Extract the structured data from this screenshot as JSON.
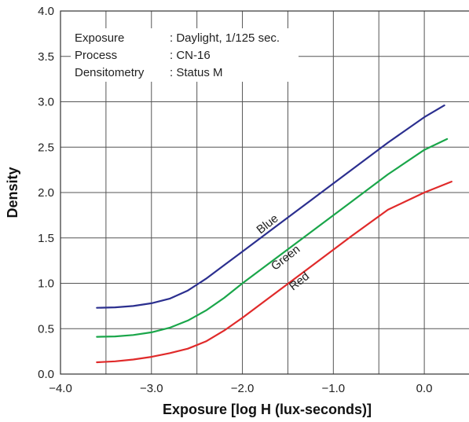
{
  "chart_data": {
    "type": "line",
    "title": "",
    "xlabel": "Exposure [log H (lux-seconds)]",
    "ylabel": "Density",
    "xlim": [
      -4.0,
      0.5
    ],
    "ylim": [
      0.0,
      4.0
    ],
    "xticks": [
      -4.0,
      -3.0,
      -2.0,
      -1.0,
      0.0
    ],
    "xtick_labels": [
      "−4.0",
      "−3.0",
      "−2.0",
      "−1.0",
      "0.0"
    ],
    "yticks": [
      0.0,
      0.5,
      1.0,
      1.5,
      2.0,
      2.5,
      3.0,
      3.5,
      4.0
    ],
    "ytick_labels": [
      "0.0",
      "0.5",
      "1.0",
      "1.5",
      "2.0",
      "2.5",
      "3.0",
      "3.5",
      "4.0"
    ],
    "xgrid": [
      -4.0,
      -3.5,
      -3.0,
      -2.5,
      -2.0,
      -1.5,
      -1.0,
      -0.5,
      0.0,
      0.5
    ],
    "ygrid": [
      0.0,
      0.5,
      1.0,
      1.5,
      2.0,
      2.5,
      3.0,
      3.5,
      4.0
    ],
    "grid": true,
    "info": [
      {
        "key": "Exposure",
        "value": ": Daylight, 1/125 sec."
      },
      {
        "key": "Process",
        "value": ": CN-16"
      },
      {
        "key": "Densitometry",
        "value": ": Status M"
      }
    ],
    "series": [
      {
        "name": "Blue",
        "color": "#2b2f8f",
        "x": [
          -3.6,
          -3.4,
          -3.2,
          -3.0,
          -2.8,
          -2.6,
          -2.4,
          -2.2,
          -2.0,
          -1.6,
          -1.2,
          -0.8,
          -0.4,
          0.0,
          0.22
        ],
        "y": [
          0.73,
          0.735,
          0.75,
          0.78,
          0.83,
          0.92,
          1.05,
          1.2,
          1.35,
          1.65,
          1.95,
          2.25,
          2.55,
          2.83,
          2.96
        ]
      },
      {
        "name": "Green",
        "color": "#1aa64a",
        "x": [
          -3.6,
          -3.4,
          -3.2,
          -3.0,
          -2.8,
          -2.6,
          -2.4,
          -2.2,
          -2.0,
          -1.6,
          -1.2,
          -0.8,
          -0.4,
          0.0,
          0.25
        ],
        "y": [
          0.41,
          0.415,
          0.43,
          0.46,
          0.51,
          0.59,
          0.7,
          0.84,
          1.0,
          1.3,
          1.6,
          1.9,
          2.2,
          2.47,
          2.59
        ]
      },
      {
        "name": "Red",
        "color": "#e02a2a",
        "x": [
          -3.6,
          -3.4,
          -3.2,
          -3.0,
          -2.8,
          -2.6,
          -2.4,
          -2.2,
          -2.0,
          -1.6,
          -1.2,
          -0.8,
          -0.4,
          0.0,
          0.3
        ],
        "y": [
          0.13,
          0.14,
          0.16,
          0.19,
          0.23,
          0.28,
          0.36,
          0.48,
          0.62,
          0.92,
          1.22,
          1.52,
          1.81,
          2.0,
          2.12
        ]
      }
    ],
    "annotations": [
      {
        "text": "Blue",
        "x": -1.7,
        "y": 1.62,
        "angle": -38
      },
      {
        "text": "Green",
        "x": -1.5,
        "y": 1.25,
        "angle": -38
      },
      {
        "text": "Red",
        "x": -1.35,
        "y": 0.99,
        "angle": -38
      }
    ]
  }
}
